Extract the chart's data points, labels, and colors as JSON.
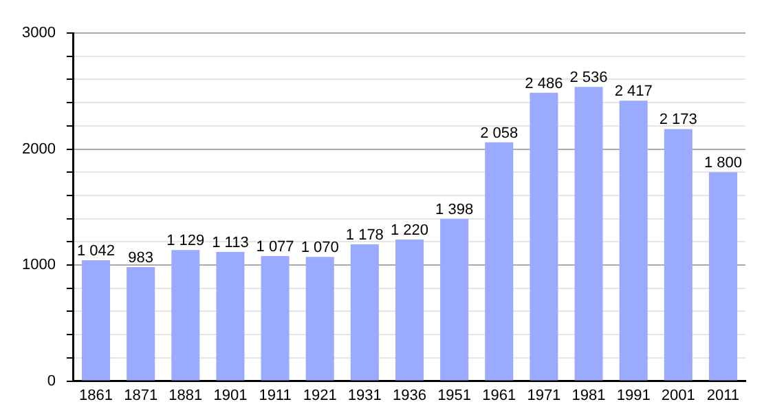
{
  "chart_data": {
    "type": "bar",
    "categories": [
      "1861",
      "1871",
      "1881",
      "1901",
      "1911",
      "1921",
      "1931",
      "1936",
      "1951",
      "1961",
      "1971",
      "1981",
      "1991",
      "2001",
      "2011"
    ],
    "values": [
      1042,
      983,
      1129,
      1113,
      1077,
      1070,
      1178,
      1220,
      1398,
      2058,
      2486,
      2536,
      2417,
      2173,
      1800
    ],
    "value_labels": [
      "1 042",
      "983",
      "1 129",
      "1 113",
      "1 077",
      "1 070",
      "1 178",
      "1 220",
      "1 398",
      "2 058",
      "2 486",
      "2 536",
      "2 417",
      "2 173",
      "1 800"
    ],
    "color": "#99aaff",
    "ylim": [
      0,
      3000
    ],
    "yticks": [
      0,
      {
        "value": 200,
        "label": null
      },
      {
        "value": 400,
        "label": null
      },
      {
        "value": 600,
        "label": null
      },
      {
        "value": 800,
        "label": null
      },
      1000,
      {
        "value": 1200,
        "label": null
      },
      {
        "value": 1400,
        "label": null
      },
      {
        "value": 1600,
        "label": null
      },
      {
        "value": 1800,
        "label": null
      },
      2000,
      {
        "value": 2200,
        "label": null
      },
      {
        "value": 2400,
        "label": null
      },
      {
        "value": 2600,
        "label": null
      },
      {
        "value": 2800,
        "label": null
      },
      3000
    ],
    "grid": "y",
    "legend": false
  }
}
